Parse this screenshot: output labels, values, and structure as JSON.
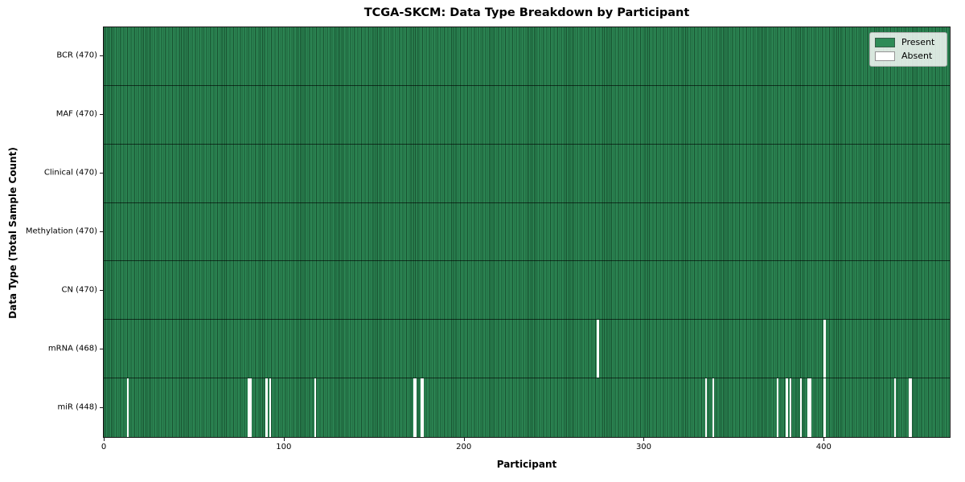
{
  "chart_data": {
    "type": "heatmap",
    "title": "TCGA-SKCM: Data Type Breakdown by Participant",
    "xlabel": "Participant",
    "ylabel": "Data Type (Total Sample Count)",
    "n_participants": 470,
    "x_ticks": [
      0,
      100,
      200,
      300,
      400
    ],
    "grid": false,
    "legend_position": "upper right",
    "rows": [
      {
        "label": "BCR (470)",
        "data_type": "BCR",
        "total": 470,
        "absent_participants": []
      },
      {
        "label": "MAF (470)",
        "data_type": "MAF",
        "total": 470,
        "absent_participants": []
      },
      {
        "label": "Clinical (470)",
        "data_type": "Clinical",
        "total": 470,
        "absent_participants": []
      },
      {
        "label": "Methylation (470)",
        "data_type": "Methylation",
        "total": 470,
        "absent_participants": []
      },
      {
        "label": "CN (470)",
        "data_type": "CN",
        "total": 470,
        "absent_participants": []
      },
      {
        "label": "mRNA (468)",
        "data_type": "mRNA",
        "total": 468,
        "absent_participants": [
          274,
          400
        ]
      },
      {
        "label": "miR (448)",
        "data_type": "miR",
        "total": 448,
        "absent_participants": [
          13,
          80,
          81,
          90,
          92,
          117,
          172,
          173,
          176,
          177,
          334,
          338,
          374,
          379,
          381,
          387,
          391,
          392,
          400,
          439,
          447,
          448
        ]
      }
    ],
    "legend": [
      {
        "label": "Present",
        "color": "#2e8b57"
      },
      {
        "label": "Absent",
        "color": "#ffffff"
      }
    ],
    "colors": {
      "present": "#2e8b57",
      "absent": "#ffffff",
      "cell_edge": "#17502f",
      "row_divider": "rgba(0,0,0,0.62)",
      "spine": "#1a1a1a"
    }
  }
}
